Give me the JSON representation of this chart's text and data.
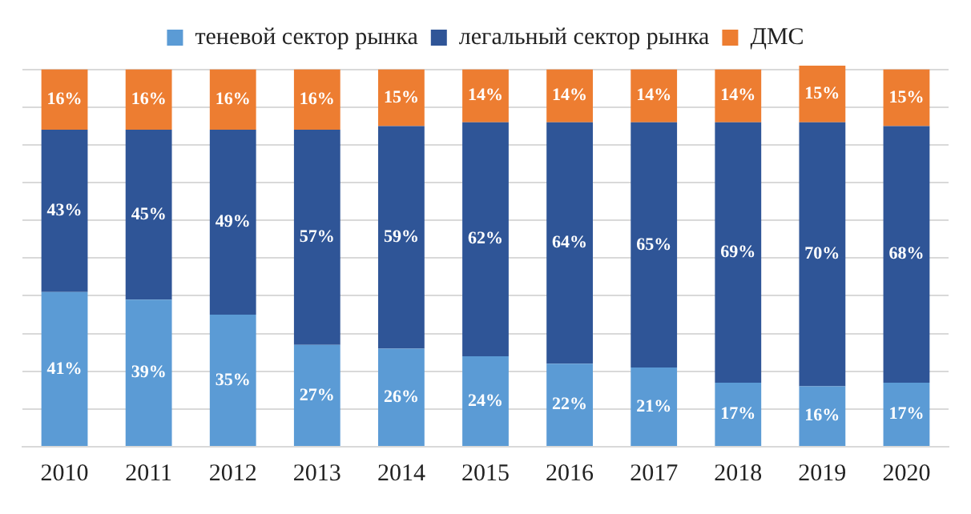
{
  "chart_data": {
    "type": "bar",
    "stacked": true,
    "categories": [
      "2010",
      "2011",
      "2012",
      "2013",
      "2014",
      "2015",
      "2016",
      "2017",
      "2018",
      "2019",
      "2020"
    ],
    "series": [
      {
        "name": "теневой сектор рынка",
        "color": "#5b9bd5",
        "values": [
          41,
          39,
          35,
          27,
          26,
          24,
          22,
          21,
          17,
          16,
          17
        ],
        "value_labels": [
          "41%",
          "39%",
          "35%",
          "27%",
          "26%",
          "24%",
          "22%",
          "21%",
          "17%",
          "16%",
          "17%"
        ]
      },
      {
        "name": "легальный сектор рынка",
        "color": "#2f5597",
        "values": [
          43,
          45,
          49,
          57,
          59,
          62,
          64,
          65,
          69,
          70,
          68
        ],
        "value_labels": [
          "43%",
          "45%",
          "49%",
          "57%",
          "59%",
          "62%",
          "64%",
          "65%",
          "69%",
          "70%",
          "68%"
        ]
      },
      {
        "name": "ДМС",
        "color": "#ed7d31",
        "values": [
          16,
          16,
          16,
          16,
          15,
          14,
          14,
          14,
          14,
          15,
          15
        ],
        "value_labels": [
          "16%",
          "16%",
          "16%",
          "16%",
          "15%",
          "14%",
          "14%",
          "14%",
          "14%",
          "15%",
          "15%"
        ]
      }
    ],
    "ylim": [
      0,
      101
    ],
    "yticks": [
      {
        "value": 0,
        "label": null
      },
      {
        "value": 10,
        "label": null
      },
      {
        "value": 20,
        "label": null
      },
      {
        "value": 30,
        "label": null
      },
      {
        "value": 40,
        "label": null
      },
      {
        "value": 50,
        "label": null
      },
      {
        "value": 60,
        "label": null
      },
      {
        "value": 70,
        "label": null
      },
      {
        "value": 80,
        "label": null
      },
      {
        "value": 90,
        "label": null
      },
      {
        "value": 100,
        "label": null
      }
    ],
    "grid": "y",
    "legend": "top",
    "tick_labels": "x"
  }
}
